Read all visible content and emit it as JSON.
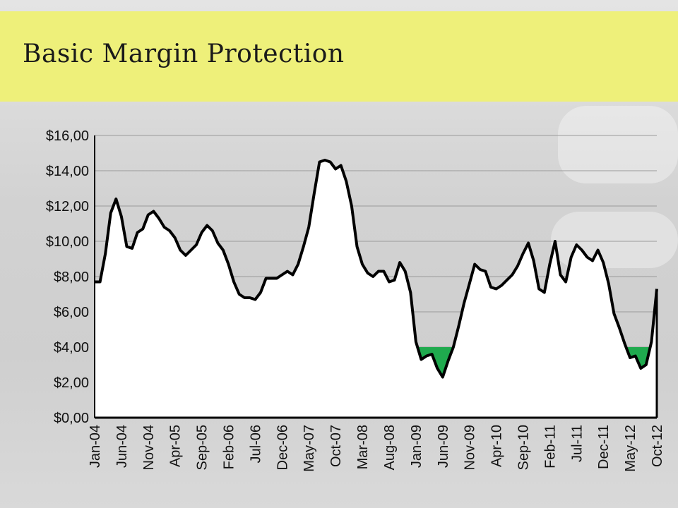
{
  "header": {
    "title": "Basic Margin Protection"
  },
  "colors": {
    "band": "#eef07a",
    "line": "#000000",
    "fill": "#ffffff",
    "protection": "#1faa4e"
  },
  "chart_data": {
    "type": "line",
    "title": "",
    "xlabel": "",
    "ylabel": "",
    "ylim": [
      0,
      16
    ],
    "y_ticks": [
      "$0,00",
      "$2,00",
      "$4,00",
      "$6,00",
      "$8,00",
      "$10,00",
      "$12,00",
      "$14,00",
      "$16,00"
    ],
    "x_ticks": [
      "Jan-04",
      "Jun-04",
      "Nov-04",
      "Apr-05",
      "Sep-05",
      "Feb-06",
      "Jul-06",
      "Dec-06",
      "May-07",
      "Oct-07",
      "Mar-08",
      "Aug-08",
      "Jan-09",
      "Jun-09",
      "Nov-09",
      "Apr-10",
      "Sep-10",
      "Feb-11",
      "Jul-11",
      "Dec-11",
      "May-12",
      "Oct-12"
    ],
    "coverage_level": 4.0,
    "grid": true,
    "legend": "none",
    "series": [
      {
        "values": [
          7.7,
          7.7,
          9.3,
          11.6,
          12.4,
          11.4,
          9.7,
          9.6,
          10.5,
          10.7,
          11.5,
          11.7,
          11.3,
          10.8,
          10.6,
          10.2,
          9.5,
          9.2,
          9.5,
          9.8,
          10.5,
          10.9,
          10.6,
          9.9,
          9.5,
          8.7,
          7.7,
          7.0,
          6.8,
          6.8,
          6.7,
          7.1,
          7.9,
          7.9,
          7.9,
          8.1,
          8.3,
          8.1,
          8.7,
          9.7,
          10.8,
          12.7,
          14.5,
          14.6,
          14.5,
          14.1,
          14.3,
          13.4,
          12.0,
          9.7,
          8.7,
          8.2,
          8.0,
          8.3,
          8.3,
          7.7,
          7.8,
          8.8,
          8.3,
          7.1,
          4.3,
          3.3,
          3.5,
          3.6,
          2.8,
          2.3,
          3.2,
          4.0,
          5.2,
          6.5,
          7.6,
          8.7,
          8.4,
          8.3,
          7.4,
          7.3,
          7.5,
          7.8,
          8.1,
          8.6,
          9.3,
          9.9,
          8.9,
          7.3,
          7.1,
          8.7,
          10.0,
          8.1,
          7.7,
          9.1,
          9.8,
          9.5,
          9.1,
          8.9,
          9.5,
          8.8,
          7.6,
          5.9,
          5.1,
          4.2,
          3.4,
          3.5,
          2.8,
          3.0,
          4.3,
          7.3
        ]
      }
    ]
  }
}
